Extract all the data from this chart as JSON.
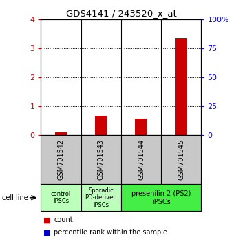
{
  "title": "GDS4141 / 243520_x_at",
  "samples": [
    "GSM701542",
    "GSM701543",
    "GSM701544",
    "GSM701545"
  ],
  "count_values": [
    0.13,
    0.68,
    0.58,
    3.37
  ],
  "percentile_values": [
    0.04,
    0.06,
    0.05,
    0.55
  ],
  "ylim_left": [
    0,
    4
  ],
  "ylim_right": [
    0,
    100
  ],
  "yticks_left": [
    0,
    1,
    2,
    3,
    4
  ],
  "yticks_right": [
    0,
    25,
    50,
    75,
    100
  ],
  "ytick_labels_right": [
    "0",
    "25",
    "50",
    "75",
    "100%"
  ],
  "count_color": "#cc0000",
  "percentile_color": "#0000cc",
  "bar_width": 0.3,
  "group_configs": [
    {
      "label": "control\nIPSCs",
      "xmin": 0,
      "xmax": 1,
      "color": "#bbffbb"
    },
    {
      "label": "Sporadic\nPD-derived\niPSCs",
      "xmin": 1,
      "xmax": 2,
      "color": "#bbffbb"
    },
    {
      "label": "presenilin 2 (PS2)\niPSCs",
      "xmin": 2,
      "xmax": 4,
      "color": "#44ee44"
    }
  ],
  "background_color": "#ffffff",
  "sample_box_color": "#c8c8c8",
  "dotted_grid": true
}
